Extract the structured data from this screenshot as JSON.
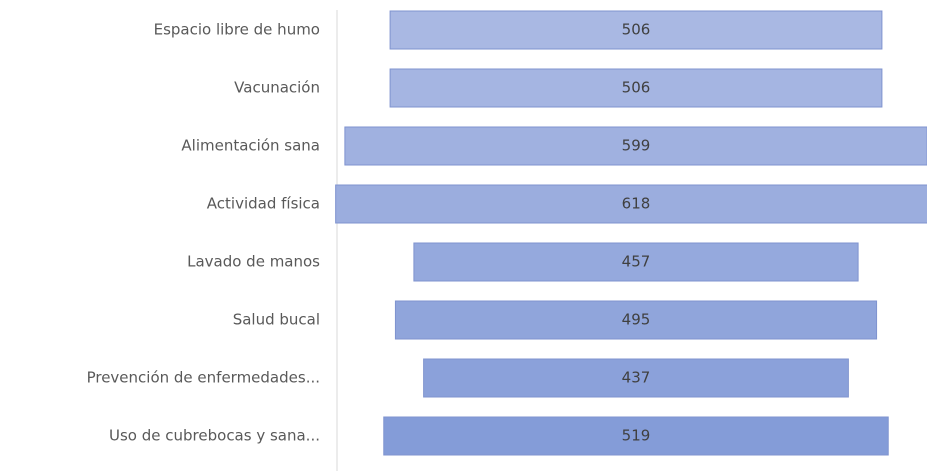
{
  "chart_data": {
    "type": "funnel",
    "categories": [
      "Espacio libre de humo",
      "Vacunación",
      "Alimentación sana",
      "Actividad física",
      "Lavado de manos",
      "Salud bucal",
      "Prevención de enfermedades...",
      "Uso de cubrebocas y sana..."
    ],
    "values": [
      506,
      506,
      599,
      618,
      457,
      495,
      437,
      519
    ],
    "colors": [
      "#a9b8e3",
      "#a5b5e2",
      "#a0b1e0",
      "#9badde",
      "#95a9dd",
      "#90a5db",
      "#8ba1da",
      "#849cd8"
    ]
  }
}
